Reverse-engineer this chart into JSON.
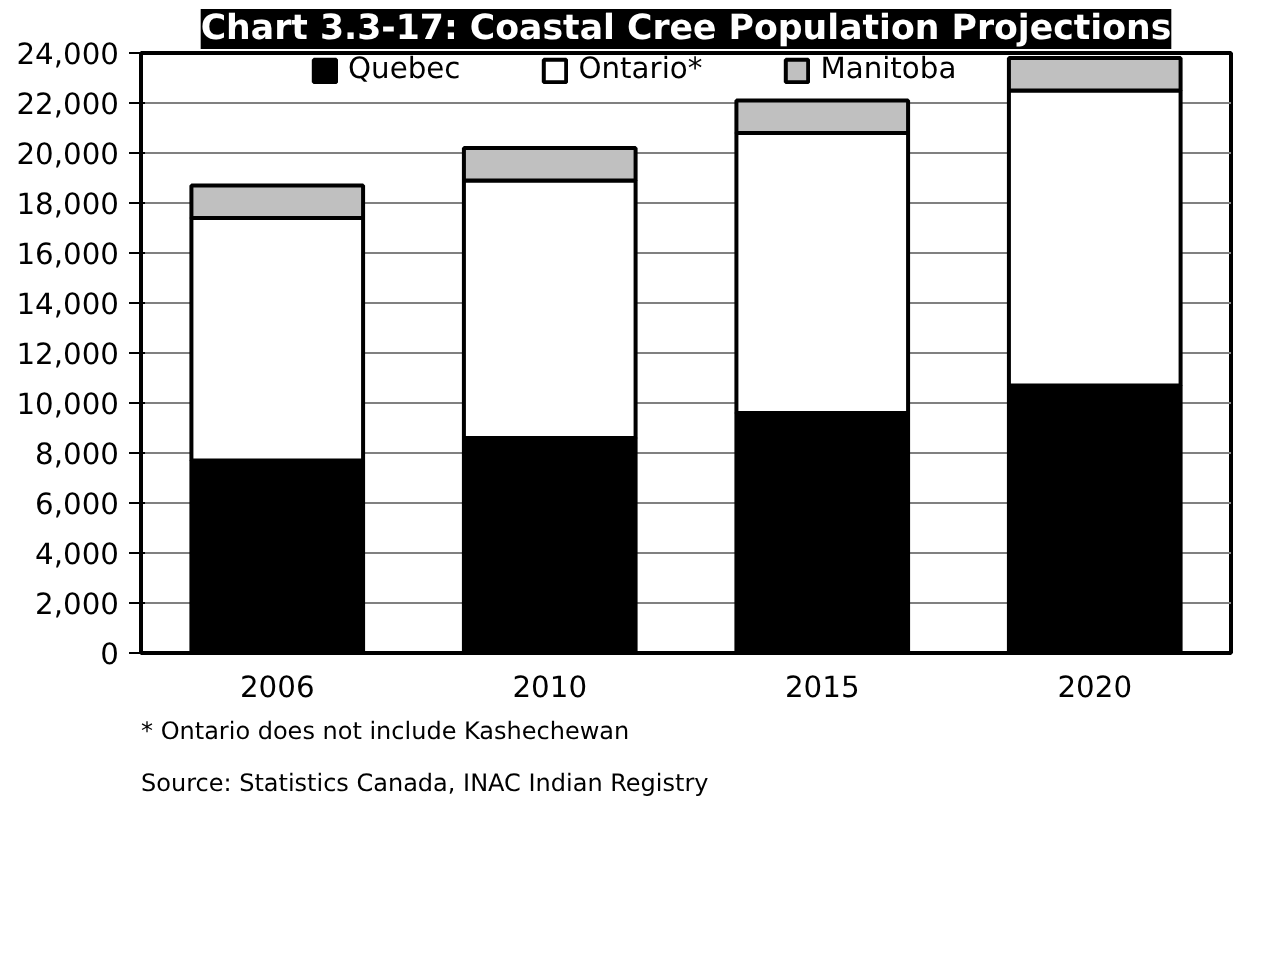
{
  "chart_data": {
    "type": "bar",
    "title": "Chart 3.3-17: Coastal Cree Population Projections",
    "stacked": true,
    "categories": [
      "2006",
      "2010",
      "2015",
      "2020"
    ],
    "series": [
      {
        "name": "Quebec",
        "color": "#000000",
        "values": [
          7700,
          8600,
          9600,
          10700
        ]
      },
      {
        "name": "Ontario*",
        "color": "#ffffff",
        "values": [
          9700,
          10300,
          11200,
          11800
        ]
      },
      {
        "name": "Manitoba",
        "color": "#c0c0c0",
        "values": [
          1300,
          1300,
          1300,
          1300
        ]
      }
    ],
    "ylim": [
      0,
      24000
    ],
    "yticks": [
      0,
      {
        "value": 2000,
        "label": "2,000"
      },
      {
        "value": 4000,
        "label": "4,000"
      },
      {
        "value": 6000,
        "label": "6,000"
      },
      {
        "value": 8000,
        "label": "8,000"
      },
      {
        "value": 10000,
        "label": "10,000"
      },
      {
        "value": 12000,
        "label": "12,000"
      },
      {
        "value": 14000,
        "label": "14,000"
      },
      {
        "value": 16000,
        "label": "16,000"
      },
      {
        "value": 18000,
        "label": "18,000"
      },
      {
        "value": 20000,
        "label": "20,000"
      },
      {
        "value": 22000,
        "label": "22,000"
      },
      {
        "value": 24000,
        "label": "24,000"
      }
    ],
    "grid": "y",
    "legend": "top",
    "annotations": [
      "* Ontario does not include Kashechewan",
      "Source: Statistics Canada, INAC Indian Registry"
    ]
  }
}
